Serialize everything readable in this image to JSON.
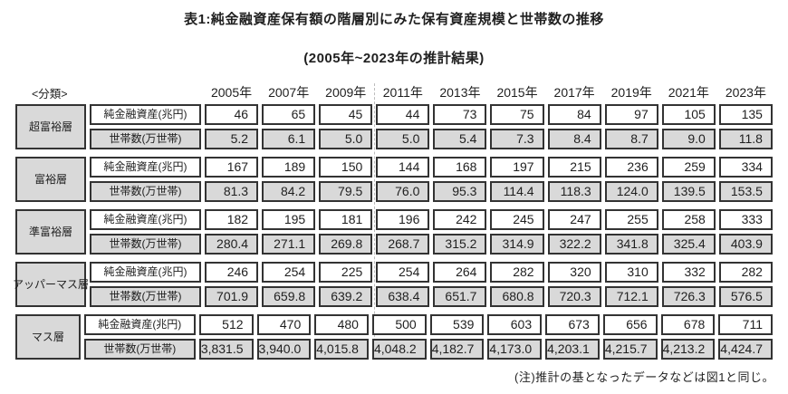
{
  "header": {
    "title": "表1:純金融資産保有額の階層別にみた保有資産規模と世帯数の推移",
    "subtitle": "(2005年~2023年の推計結果)"
  },
  "footnote": "(注)推計の基となったデータなどは図1と同じ。",
  "table": {
    "corner_label": "<分類>",
    "years": [
      "2005年",
      "2007年",
      "2009年",
      "2011年",
      "2013年",
      "2015年",
      "2017年",
      "2019年",
      "2021年",
      "2023年"
    ],
    "metric_labels": {
      "assets": "純金融資産(兆円)",
      "households": "世帯数(万世帯)"
    },
    "groups": [
      {
        "tier": "超富裕層",
        "assets": [
          "46",
          "65",
          "45",
          "44",
          "73",
          "75",
          "84",
          "97",
          "105",
          "135"
        ],
        "households": [
          "5.2",
          "6.1",
          "5.0",
          "5.0",
          "5.4",
          "7.3",
          "8.4",
          "8.7",
          "9.0",
          "11.8"
        ]
      },
      {
        "tier": "富裕層",
        "assets": [
          "167",
          "189",
          "150",
          "144",
          "168",
          "197",
          "215",
          "236",
          "259",
          "334"
        ],
        "households": [
          "81.3",
          "84.2",
          "79.5",
          "76.0",
          "95.3",
          "114.4",
          "118.3",
          "124.0",
          "139.5",
          "153.5"
        ]
      },
      {
        "tier": "準富裕層",
        "assets": [
          "182",
          "195",
          "181",
          "196",
          "242",
          "245",
          "247",
          "255",
          "258",
          "333"
        ],
        "households": [
          "280.4",
          "271.1",
          "269.8",
          "268.7",
          "315.2",
          "314.9",
          "322.2",
          "341.8",
          "325.4",
          "403.9"
        ]
      },
      {
        "tier": "アッパーマス層",
        "assets": [
          "246",
          "254",
          "225",
          "254",
          "264",
          "282",
          "320",
          "310",
          "332",
          "282"
        ],
        "households": [
          "701.9",
          "659.8",
          "639.2",
          "638.4",
          "651.7",
          "680.8",
          "720.3",
          "712.1",
          "726.3",
          "576.5"
        ]
      },
      {
        "tier": "マス層",
        "assets": [
          "512",
          "470",
          "480",
          "500",
          "539",
          "603",
          "673",
          "656",
          "678",
          "711"
        ],
        "households": [
          "3,831.5",
          "3,940.0",
          "4,015.8",
          "4,048.2",
          "4,182.7",
          "4,173.0",
          "4,203.1",
          "4,215.7",
          "4,213.2",
          "4,424.7"
        ]
      }
    ]
  },
  "colors": {
    "cell_fill_gray": "#d9d9d9",
    "cell_border": "#333333",
    "dashed_divider": "#bdbdbd",
    "background": "#ffffff"
  },
  "chart_data": {
    "type": "table",
    "title": "表1:純金融資産保有額の階層別にみた保有資産規模と世帯数の推移",
    "subtitle": "(2005年~2023年の推計結果)",
    "note": "(注)推計の基となったデータなどは図1と同じ。",
    "columns": [
      2005,
      2007,
      2009,
      2011,
      2013,
      2015,
      2017,
      2019,
      2021,
      2023
    ],
    "column_unit": "年",
    "row_groups": [
      {
        "tier": "超富裕層",
        "rows": [
          {
            "label": "純金融資産(兆円)",
            "values": [
              46,
              65,
              45,
              44,
              73,
              75,
              84,
              97,
              105,
              135
            ]
          },
          {
            "label": "世帯数(万世帯)",
            "values": [
              5.2,
              6.1,
              5.0,
              5.0,
              5.4,
              7.3,
              8.4,
              8.7,
              9.0,
              11.8
            ]
          }
        ]
      },
      {
        "tier": "富裕層",
        "rows": [
          {
            "label": "純金融資産(兆円)",
            "values": [
              167,
              189,
              150,
              144,
              168,
              197,
              215,
              236,
              259,
              334
            ]
          },
          {
            "label": "世帯数(万世帯)",
            "values": [
              81.3,
              84.2,
              79.5,
              76.0,
              95.3,
              114.4,
              118.3,
              124.0,
              139.5,
              153.5
            ]
          }
        ]
      },
      {
        "tier": "準富裕層",
        "rows": [
          {
            "label": "純金融資産(兆円)",
            "values": [
              182,
              195,
              181,
              196,
              242,
              245,
              247,
              255,
              258,
              333
            ]
          },
          {
            "label": "世帯数(万世帯)",
            "values": [
              280.4,
              271.1,
              269.8,
              268.7,
              315.2,
              314.9,
              322.2,
              341.8,
              325.4,
              403.9
            ]
          }
        ]
      },
      {
        "tier": "アッパーマス層",
        "rows": [
          {
            "label": "純金融資産(兆円)",
            "values": [
              246,
              254,
              225,
              254,
              264,
              282,
              320,
              310,
              332,
              282
            ]
          },
          {
            "label": "世帯数(万世帯)",
            "values": [
              701.9,
              659.8,
              639.2,
              638.4,
              651.7,
              680.8,
              720.3,
              712.1,
              726.3,
              576.5
            ]
          }
        ]
      },
      {
        "tier": "マス層",
        "rows": [
          {
            "label": "純金融資産(兆円)",
            "values": [
              512,
              470,
              480,
              500,
              539,
              603,
              673,
              656,
              678,
              711
            ]
          },
          {
            "label": "世帯数(万世帯)",
            "values": [
              3831.5,
              3940.0,
              4015.8,
              4048.2,
              4182.7,
              4173.0,
              4203.1,
              4215.7,
              4213.2,
              4424.7
            ]
          }
        ]
      }
    ]
  }
}
